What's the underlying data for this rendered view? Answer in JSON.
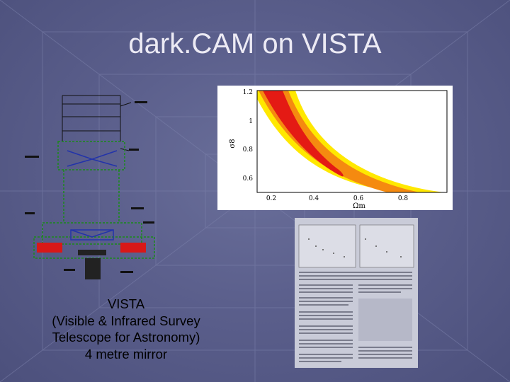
{
  "title": "dark.CAM on VISTA",
  "caption": {
    "lines": [
      "VISTA",
      "(Visible & Infrared Survey",
      "Telescope for Astronomy)",
      "4 metre mirror"
    ]
  },
  "figure": {
    "yticks": [
      "1.2",
      "1",
      "0.8",
      "0.6"
    ],
    "xticks": [
      "0.2",
      "0.4",
      "0.6",
      "0.8"
    ],
    "xlabel": "Ωm",
    "ylabel": "σ8"
  }
}
